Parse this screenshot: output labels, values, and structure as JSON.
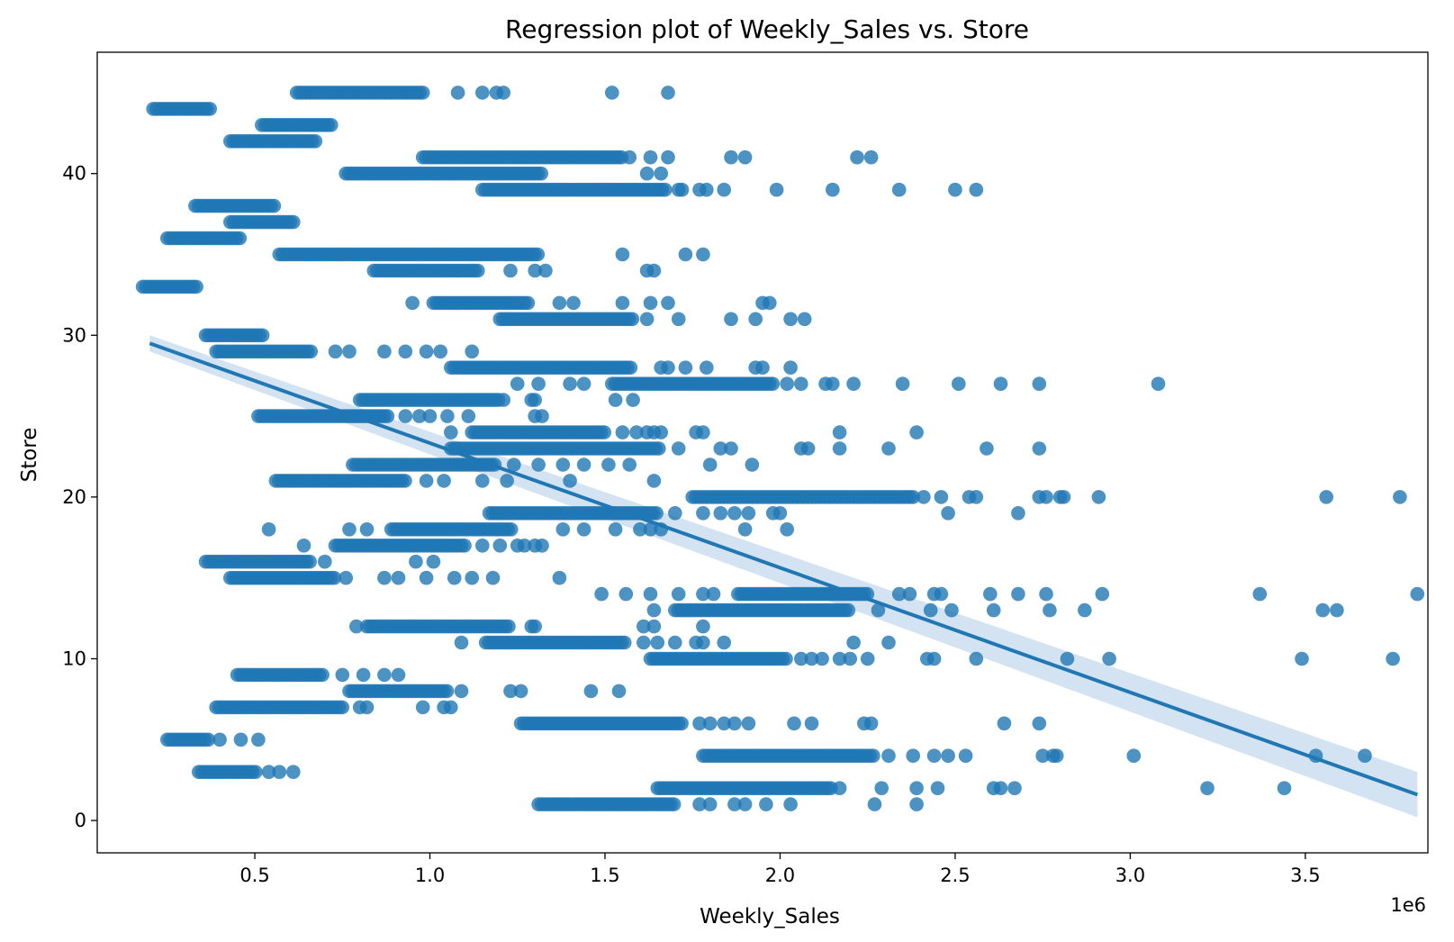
{
  "chart_data": {
    "type": "scatter",
    "title": "Regression plot of Weekly_Sales vs. Store",
    "xlabel": "Weekly_Sales",
    "ylabel": "Store",
    "x_offset_label": "1e6",
    "x_scale_factor": 1000000,
    "xlim": [
      0.05,
      3.85
    ],
    "ylim": [
      -2,
      47.5
    ],
    "xticks": [
      0.5,
      1.0,
      1.5,
      2.0,
      2.5,
      3.0,
      3.5
    ],
    "xtick_labels": [
      "0.5",
      "1.0",
      "1.5",
      "2.0",
      "2.5",
      "3.0",
      "3.5"
    ],
    "yticks": [
      0,
      10,
      20,
      30,
      40
    ],
    "ytick_labels": [
      "0",
      "10",
      "20",
      "30",
      "40"
    ],
    "grid": false,
    "colors": {
      "points": "#1f77b4",
      "line": "#1f77b4",
      "band": "#c6d9ec"
    },
    "store_ranges": [
      {
        "store": 45,
        "x": [
          0.62,
          0.98
        ],
        "extra": [
          1.08,
          1.15,
          1.19,
          1.21,
          1.52,
          1.68
        ]
      },
      {
        "store": 44,
        "x": [
          0.21,
          0.38
        ],
        "extra": []
      },
      {
        "store": 43,
        "x": [
          0.52,
          0.72
        ],
        "extra": []
      },
      {
        "store": 42,
        "x": [
          0.43,
          0.68
        ],
        "extra": []
      },
      {
        "store": 41,
        "x": [
          0.98,
          1.55
        ],
        "extra": [
          1.57,
          1.63,
          1.68,
          1.86,
          1.9,
          2.22,
          2.26
        ]
      },
      {
        "store": 40,
        "x": [
          0.76,
          1.32
        ],
        "extra": [
          1.62,
          1.66
        ]
      },
      {
        "store": 39,
        "x": [
          1.15,
          1.68
        ],
        "extra": [
          1.71,
          1.72,
          1.77,
          1.79,
          1.84,
          1.99,
          2.15,
          2.34,
          2.5,
          2.56
        ]
      },
      {
        "store": 38,
        "x": [
          0.33,
          0.56
        ],
        "extra": []
      },
      {
        "store": 37,
        "x": [
          0.43,
          0.61
        ],
        "extra": []
      },
      {
        "store": 36,
        "x": [
          0.25,
          0.46
        ],
        "extra": []
      },
      {
        "store": 35,
        "x": [
          0.57,
          1.31
        ],
        "extra": [
          1.55,
          1.73,
          1.78
        ]
      },
      {
        "store": 34,
        "x": [
          0.84,
          1.14
        ],
        "extra": [
          1.23,
          1.3,
          1.33,
          1.62,
          1.64
        ]
      },
      {
        "store": 33,
        "x": [
          0.18,
          0.34
        ],
        "extra": []
      },
      {
        "store": 32,
        "x": [
          1.01,
          1.28
        ],
        "extra": [
          0.95,
          1.37,
          1.41,
          1.55,
          1.63,
          1.68,
          1.95,
          1.97
        ]
      },
      {
        "store": 31,
        "x": [
          1.2,
          1.58
        ],
        "extra": [
          1.62,
          1.71,
          1.86,
          1.93,
          2.03,
          2.07
        ]
      },
      {
        "store": 30,
        "x": [
          0.36,
          0.53
        ],
        "extra": []
      },
      {
        "store": 29,
        "x": [
          0.39,
          0.66
        ],
        "extra": [
          0.73,
          0.77,
          0.87,
          0.93,
          0.99,
          1.03,
          1.12
        ]
      },
      {
        "store": 28,
        "x": [
          1.06,
          1.58
        ],
        "extra": [
          1.66,
          1.68,
          1.73,
          1.79,
          1.93,
          1.95,
          2.03
        ]
      },
      {
        "store": 27,
        "x": [
          1.52,
          1.98
        ],
        "extra": [
          1.25,
          1.31,
          1.4,
          1.44,
          2.02,
          2.06,
          2.13,
          2.15,
          2.21,
          2.35,
          2.51,
          2.63,
          2.74,
          3.08
        ]
      },
      {
        "store": 26,
        "x": [
          0.8,
          1.2
        ],
        "extra": [
          1.21,
          1.29,
          1.3,
          1.53,
          1.58
        ]
      },
      {
        "store": 25,
        "x": [
          0.51,
          0.88
        ],
        "extra": [
          0.93,
          0.97,
          1.0,
          1.05,
          1.11,
          1.3,
          1.32
        ]
      },
      {
        "store": 24,
        "x": [
          1.12,
          1.5
        ],
        "extra": [
          1.06,
          1.55,
          1.59,
          1.62,
          1.64,
          1.66,
          1.76,
          1.78,
          2.17,
          2.39
        ]
      },
      {
        "store": 23,
        "x": [
          1.06,
          1.66
        ],
        "extra": [
          1.71,
          1.83,
          1.86,
          2.06,
          2.08,
          2.17,
          2.31,
          2.59,
          2.74
        ]
      },
      {
        "store": 22,
        "x": [
          0.78,
          1.19
        ],
        "extra": [
          1.24,
          1.31,
          1.38,
          1.44,
          1.51,
          1.57,
          1.8,
          1.92
        ]
      },
      {
        "store": 21,
        "x": [
          0.56,
          0.93
        ],
        "extra": [
          0.99,
          1.04,
          1.15,
          1.22,
          1.4,
          1.64
        ]
      },
      {
        "store": 20,
        "x": [
          1.75,
          2.38
        ],
        "extra": [
          2.41,
          2.46,
          2.54,
          2.56,
          2.74,
          2.76,
          2.8,
          2.81,
          2.91,
          3.56,
          3.77
        ]
      },
      {
        "store": 19,
        "x": [
          1.17,
          1.65
        ],
        "extra": [
          1.7,
          1.78,
          1.83,
          1.87,
          1.91,
          1.98,
          2.0,
          2.48,
          2.68
        ]
      },
      {
        "store": 18,
        "x": [
          0.89,
          1.24
        ],
        "extra": [
          0.54,
          0.77,
          0.82,
          1.38,
          1.44,
          1.53,
          1.6,
          1.63,
          1.66,
          1.9,
          2.02
        ]
      },
      {
        "store": 17,
        "x": [
          0.73,
          1.1
        ],
        "extra": [
          0.64,
          1.15,
          1.2,
          1.25,
          1.27,
          1.3,
          1.32
        ]
      },
      {
        "store": 16,
        "x": [
          0.36,
          0.66
        ],
        "extra": [
          0.7,
          0.96,
          1.01
        ]
      },
      {
        "store": 15,
        "x": [
          0.43,
          0.73
        ],
        "extra": [
          0.76,
          0.87,
          0.91,
          0.99,
          1.07,
          1.12,
          1.18,
          1.37
        ]
      },
      {
        "store": 14,
        "x": [
          1.88,
          2.25
        ],
        "extra": [
          1.49,
          1.56,
          1.63,
          1.71,
          1.78,
          1.81,
          2.34,
          2.37,
          2.44,
          2.46,
          2.6,
          2.68,
          2.76,
          2.92,
          3.37,
          3.82
        ]
      },
      {
        "store": 13,
        "x": [
          1.7,
          2.2
        ],
        "extra": [
          1.64,
          2.28,
          2.43,
          2.49,
          2.61,
          2.77,
          2.87,
          3.55,
          3.59
        ]
      },
      {
        "store": 12,
        "x": [
          0.82,
          1.23
        ],
        "extra": [
          0.79,
          1.29,
          1.3,
          1.61,
          1.64,
          1.78
        ]
      },
      {
        "store": 11,
        "x": [
          1.16,
          1.56
        ],
        "extra": [
          1.09,
          1.61,
          1.65,
          1.7,
          1.76,
          1.78,
          1.84,
          2.21,
          2.31
        ]
      },
      {
        "store": 10,
        "x": [
          1.63,
          2.02
        ],
        "extra": [
          2.06,
          2.09,
          2.12,
          2.17,
          2.2,
          2.25,
          2.42,
          2.44,
          2.56,
          2.82,
          2.94,
          3.49,
          3.75
        ]
      },
      {
        "store": 9,
        "x": [
          0.45,
          0.7
        ],
        "extra": [
          0.75,
          0.81,
          0.87,
          0.91
        ]
      },
      {
        "store": 8,
        "x": [
          0.77,
          1.05
        ],
        "extra": [
          1.09,
          1.23,
          1.26,
          1.46,
          1.54
        ]
      },
      {
        "store": 7,
        "x": [
          0.39,
          0.75
        ],
        "extra": [
          0.8,
          0.82,
          0.98,
          1.04,
          1.06
        ]
      },
      {
        "store": 6,
        "x": [
          1.26,
          1.72
        ],
        "extra": [
          1.77,
          1.8,
          1.84,
          1.87,
          1.91,
          2.04,
          2.09,
          2.24,
          2.26,
          2.64,
          2.74
        ]
      },
      {
        "store": 5,
        "x": [
          0.25,
          0.37
        ],
        "extra": [
          0.4,
          0.46,
          0.51
        ]
      },
      {
        "store": 4,
        "x": [
          1.78,
          2.27
        ],
        "extra": [
          2.31,
          2.38,
          2.44,
          2.48,
          2.53,
          2.75,
          2.78,
          2.79,
          3.01,
          3.53,
          3.67
        ]
      },
      {
        "store": 3,
        "x": [
          0.34,
          0.51
        ],
        "extra": [
          0.54,
          0.57,
          0.61
        ]
      },
      {
        "store": 2,
        "x": [
          1.65,
          2.15
        ],
        "extra": [
          2.17,
          2.29,
          2.39,
          2.45,
          2.61,
          2.63,
          2.67,
          3.22,
          3.44
        ]
      },
      {
        "store": 1,
        "x": [
          1.31,
          1.7
        ],
        "extra": [
          1.77,
          1.8,
          1.87,
          1.9,
          1.96,
          2.03,
          2.27,
          2.39
        ]
      }
    ],
    "regression": {
      "x": [
        0.2,
        3.82
      ],
      "y": [
        29.5,
        1.6
      ],
      "ci_halfwidth": [
        0.5,
        1.4
      ]
    }
  }
}
